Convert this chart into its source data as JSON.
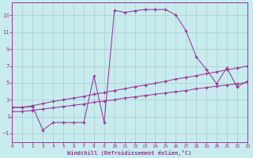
{
  "bg_color": "#c8ecee",
  "line_color": "#993399",
  "grid_color": "#aacccc",
  "xlabel": "Windchill (Refroidissement éolien,°C)",
  "xlim": [
    0,
    23
  ],
  "ylim": [
    -2,
    14.5
  ],
  "xticks": [
    0,
    1,
    2,
    3,
    4,
    5,
    6,
    7,
    8,
    9,
    10,
    11,
    12,
    13,
    14,
    15,
    16,
    17,
    18,
    19,
    20,
    21,
    22,
    23
  ],
  "yticks": [
    -1,
    1,
    3,
    5,
    7,
    9,
    11,
    13
  ],
  "line1_x": [
    0,
    1,
    2,
    3,
    4,
    5,
    6,
    7,
    8,
    9,
    10,
    11,
    12,
    13,
    14,
    15,
    16,
    17,
    18,
    19,
    20,
    21,
    22,
    23
  ],
  "line1_y": [
    2.1,
    2.1,
    2.3,
    2.55,
    2.8,
    3.0,
    3.2,
    3.4,
    3.65,
    3.85,
    4.1,
    4.3,
    4.55,
    4.75,
    4.95,
    5.2,
    5.45,
    5.65,
    5.85,
    6.1,
    6.3,
    6.55,
    6.75,
    7.0
  ],
  "line2_x": [
    0,
    1,
    2,
    3,
    4,
    5,
    6,
    7,
    8,
    9,
    10,
    11,
    12,
    13,
    14,
    15,
    16,
    17,
    18,
    19,
    20,
    21,
    22,
    23
  ],
  "line2_y": [
    1.6,
    1.6,
    1.75,
    1.9,
    2.05,
    2.2,
    2.35,
    2.5,
    2.7,
    2.85,
    3.0,
    3.2,
    3.35,
    3.5,
    3.65,
    3.8,
    3.95,
    4.1,
    4.3,
    4.45,
    4.6,
    4.75,
    4.9,
    5.05
  ],
  "line3_x": [
    0,
    1,
    2,
    3,
    4,
    5,
    6,
    7,
    8,
    9,
    10,
    11,
    12,
    13,
    14,
    15,
    16,
    17,
    18,
    19,
    20,
    21,
    22,
    23
  ],
  "line3_y": [
    2.1,
    2.1,
    2.2,
    -0.6,
    0.3,
    0.3,
    0.3,
    0.3,
    5.8,
    0.3,
    13.6,
    13.35,
    13.55,
    13.7,
    13.7,
    13.7,
    13.05,
    11.2,
    8.1,
    6.6,
    4.9,
    6.8,
    4.5,
    5.2
  ]
}
